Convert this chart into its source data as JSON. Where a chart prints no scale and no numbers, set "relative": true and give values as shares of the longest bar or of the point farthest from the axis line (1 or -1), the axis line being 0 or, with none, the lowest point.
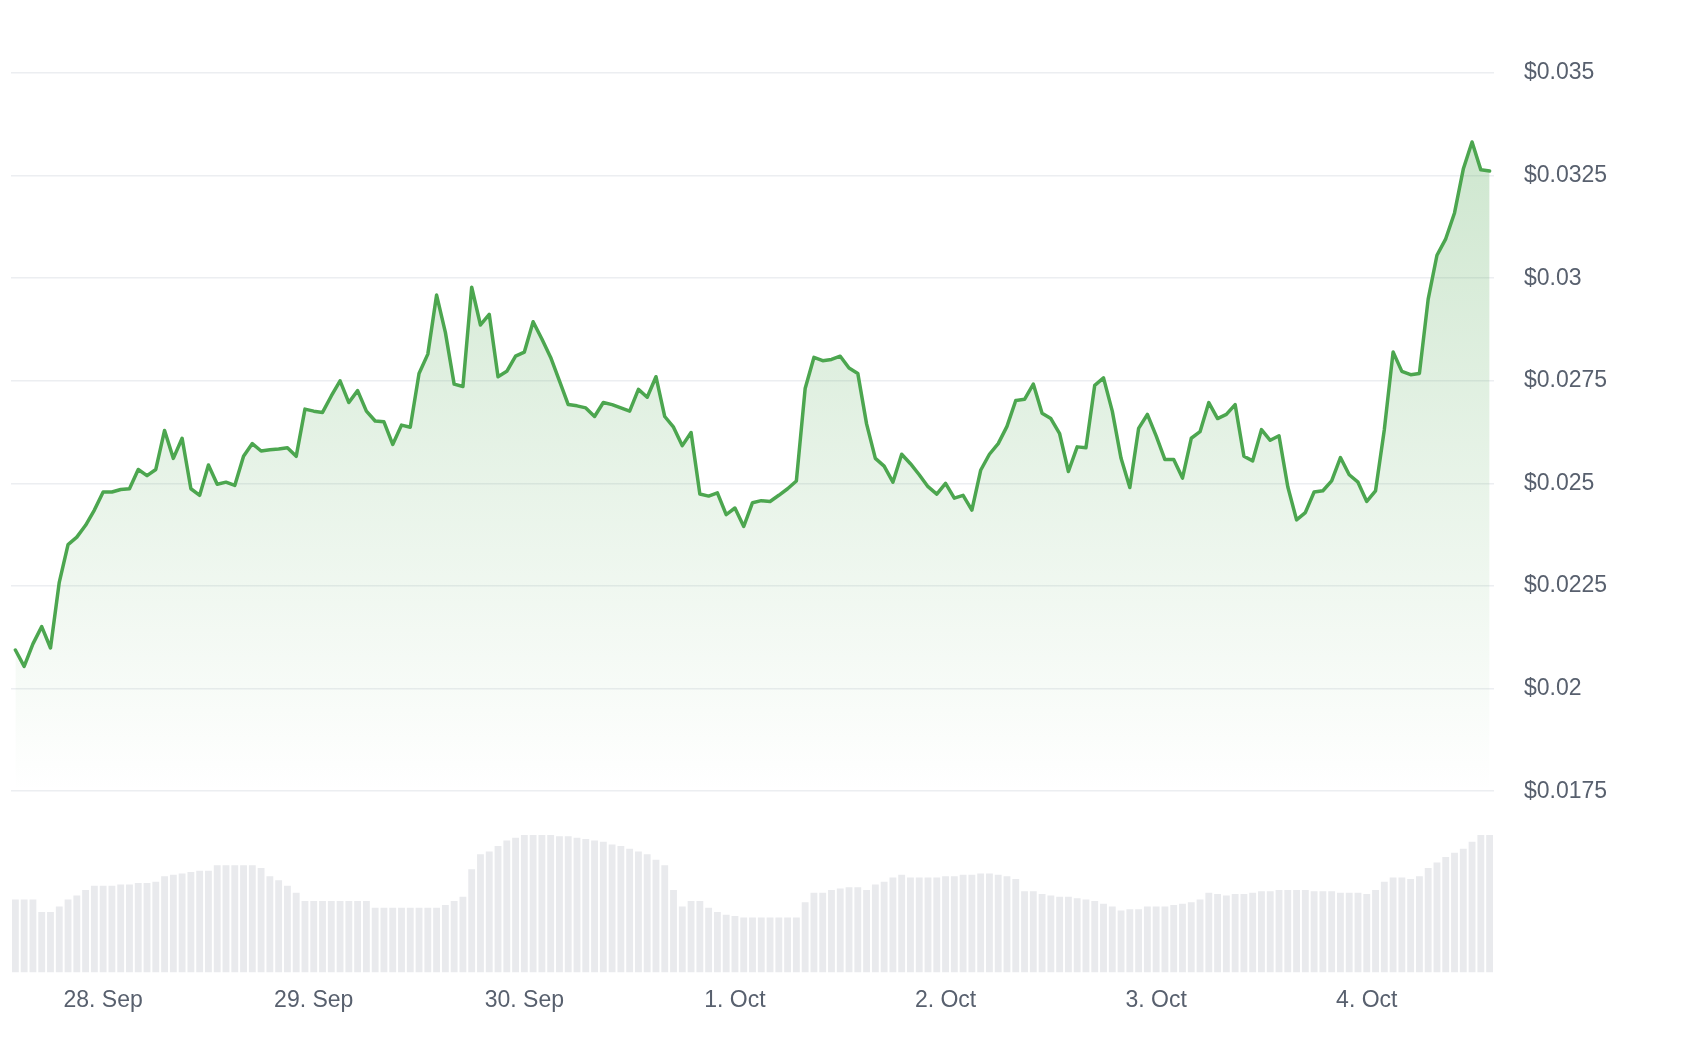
{
  "chart_data": [
    {
      "type": "area",
      "x": [
        "--09-27T14:00",
        "--09-27T15:00",
        "--09-27T16:00",
        "--09-27T17:00",
        "--09-27T18:00",
        "--09-27T19:00",
        "--09-27T20:00",
        "--09-27T21:00",
        "--09-27T22:00",
        "--09-27T23:00",
        "--09-28T00:00",
        "--09-28T01:00",
        "--09-28T02:00",
        "--09-28T03:00",
        "--09-28T04:00",
        "--09-28T05:00",
        "--09-28T06:00",
        "--09-28T07:00",
        "--09-28T08:00",
        "--09-28T09:00",
        "--09-28T10:00",
        "--09-28T11:00",
        "--09-28T12:00",
        "--09-28T13:00",
        "--09-28T14:00",
        "--09-28T15:00",
        "--09-28T16:00",
        "--09-28T17:00",
        "--09-28T18:00",
        "--09-28T19:00",
        "--09-28T20:00",
        "--09-28T21:00",
        "--09-28T22:00",
        "--09-28T23:00",
        "--09-29T00:00",
        "--09-29T01:00",
        "--09-29T02:00",
        "--09-29T03:00",
        "--09-29T04:00",
        "--09-29T05:00",
        "--09-29T06:00",
        "--09-29T07:00",
        "--09-29T08:00",
        "--09-29T09:00",
        "--09-29T10:00",
        "--09-29T11:00",
        "--09-29T12:00",
        "--09-29T13:00",
        "--09-29T14:00",
        "--09-29T15:00",
        "--09-29T16:00",
        "--09-29T17:00",
        "--09-29T18:00",
        "--09-29T19:00",
        "--09-29T20:00",
        "--09-29T21:00",
        "--09-29T22:00",
        "--09-29T23:00",
        "--09-30T00:00",
        "--09-30T01:00",
        "--09-30T02:00",
        "--09-30T03:00",
        "--09-30T04:00",
        "--09-30T05:00",
        "--09-30T06:00",
        "--09-30T07:00",
        "--09-30T08:00",
        "--09-30T09:00",
        "--09-30T10:00",
        "--09-30T11:00",
        "--09-30T12:00",
        "--09-30T13:00",
        "--09-30T14:00",
        "--09-30T15:00",
        "--09-30T16:00",
        "--09-30T17:00",
        "--09-30T18:00",
        "--09-30T19:00",
        "--09-30T20:00",
        "--09-30T21:00",
        "--09-30T22:00",
        "--09-30T23:00",
        "--10-01T00:00",
        "--10-01T01:00",
        "--10-01T02:00",
        "--10-01T03:00",
        "--10-01T04:00",
        "--10-01T05:00",
        "--10-01T06:00",
        "--10-01T07:00",
        "--10-01T08:00",
        "--10-01T09:00",
        "--10-01T10:00",
        "--10-01T11:00",
        "--10-01T12:00",
        "--10-01T13:00",
        "--10-01T14:00",
        "--10-01T15:00",
        "--10-01T16:00",
        "--10-01T17:00",
        "--10-01T18:00",
        "--10-01T19:00",
        "--10-01T20:00",
        "--10-01T21:00",
        "--10-01T22:00",
        "--10-01T23:00",
        "--10-02T00:00",
        "--10-02T01:00",
        "--10-02T02:00",
        "--10-02T03:00",
        "--10-02T04:00",
        "--10-02T05:00",
        "--10-02T06:00",
        "--10-02T07:00",
        "--10-02T08:00",
        "--10-02T09:00",
        "--10-02T10:00",
        "--10-02T11:00",
        "--10-02T12:00",
        "--10-02T13:00",
        "--10-02T14:00",
        "--10-02T15:00",
        "--10-02T16:00",
        "--10-02T17:00",
        "--10-02T18:00",
        "--10-02T19:00",
        "--10-02T20:00",
        "--10-02T21:00",
        "--10-02T22:00",
        "--10-02T23:00",
        "--10-03T00:00",
        "--10-03T01:00",
        "--10-03T02:00",
        "--10-03T03:00",
        "--10-03T04:00",
        "--10-03T05:00",
        "--10-03T06:00",
        "--10-03T07:00",
        "--10-03T08:00",
        "--10-03T09:00",
        "--10-03T10:00",
        "--10-03T11:00",
        "--10-03T12:00",
        "--10-03T13:00",
        "--10-03T14:00",
        "--10-03T15:00",
        "--10-03T16:00",
        "--10-03T17:00",
        "--10-03T18:00",
        "--10-03T19:00",
        "--10-03T20:00",
        "--10-03T21:00",
        "--10-03T22:00",
        "--10-03T23:00",
        "--10-04T00:00",
        "--10-04T01:00",
        "--10-04T02:00",
        "--10-04T03:00",
        "--10-04T04:00",
        "--10-04T05:00",
        "--10-04T06:00",
        "--10-04T07:00",
        "--10-04T08:00",
        "--10-04T09:00",
        "--10-04T10:00",
        "--10-04T11:00",
        "--10-04T12:00",
        "--10-04T13:00",
        "--10-04T14:00"
      ],
      "series": [
        {
          "color": "#4ca64f",
          "values": [
            0.02094,
            0.02054,
            0.02109,
            0.02151,
            0.02099,
            0.02259,
            0.02351,
            0.02369,
            0.02398,
            0.02435,
            0.02479,
            0.02479,
            0.02485,
            0.02487,
            0.02534,
            0.02519,
            0.02534,
            0.02629,
            0.02561,
            0.0261,
            0.02487,
            0.02471,
            0.02545,
            0.02498,
            0.02503,
            0.02495,
            0.02566,
            0.02597,
            0.02579,
            0.02582,
            0.02584,
            0.02587,
            0.02566,
            0.02681,
            0.02676,
            0.02673,
            0.02713,
            0.0275,
            0.02697,
            0.02726,
            0.02676,
            0.02652,
            0.0265,
            0.02595,
            0.02642,
            0.02637,
            0.02768,
            0.02815,
            0.02959,
            0.02868,
            0.02742,
            0.02736,
            0.02978,
            0.02886,
            0.02912,
            0.0276,
            0.02773,
            0.0281,
            0.0282,
            0.02894,
            0.02852,
            0.02807,
            0.0275,
            0.02692,
            0.02689,
            0.02684,
            0.02663,
            0.02697,
            0.02692,
            0.02684,
            0.02676,
            0.02729,
            0.0271,
            0.0276,
            0.02663,
            0.02637,
            0.02592,
            0.02624,
            0.02474,
            0.02469,
            0.02477,
            0.02424,
            0.0244,
            0.02395,
            0.02453,
            0.02458,
            0.02456,
            0.02471,
            0.02487,
            0.02506,
            0.02731,
            0.02807,
            0.02799,
            0.02802,
            0.0281,
            0.02781,
            0.02768,
            0.02645,
            0.02561,
            0.02542,
            0.02503,
            0.02571,
            0.02548,
            0.02521,
            0.02492,
            0.02474,
            0.025,
            0.02464,
            0.02471,
            0.02435,
            0.02532,
            0.02571,
            0.02597,
            0.02639,
            0.02702,
            0.02705,
            0.02742,
            0.02671,
            0.02658,
            0.02621,
            0.02529,
            0.02589,
            0.02587,
            0.02739,
            0.02757,
            0.02676,
            0.02561,
            0.0249,
            0.02634,
            0.02668,
            0.02616,
            0.02558,
            0.02558,
            0.02513,
            0.0261,
            0.02626,
            0.02697,
            0.02658,
            0.02668,
            0.02692,
            0.02566,
            0.02555,
            0.02631,
            0.02605,
            0.02616,
            0.02492,
            0.02411,
            0.02429,
            0.02479,
            0.02482,
            0.02506,
            0.02563,
            0.02521,
            0.02503,
            0.02456,
            0.02482,
            0.02631,
            0.0282,
            0.02773,
            0.02765,
            0.02768,
            0.02949,
            0.03056,
            0.03096,
            0.03159,
            0.03266,
            0.03332,
            0.03264,
            0.03261
          ]
        }
      ],
      "xlim": [
        "--09-27T13:30",
        "--10-04T14:30"
      ],
      "ylim": [
        0.0175,
        0.035
      ],
      "yticks": [
        {
          "value": 0.0175,
          "label": "$0.0175"
        },
        {
          "value": 0.02,
          "label": "$0.02"
        },
        {
          "value": 0.0225,
          "label": "$0.0225"
        },
        {
          "value": 0.025,
          "label": "$0.025"
        },
        {
          "value": 0.0275,
          "label": "$0.0275"
        },
        {
          "value": 0.03,
          "label": "$0.03"
        },
        {
          "value": 0.0325,
          "label": "$0.0325"
        },
        {
          "value": 0.035,
          "label": "$0.035"
        }
      ],
      "grid": "y",
      "tick_labels": "y"
    },
    {
      "type": "bar",
      "relative": true,
      "x": [
        "--09-27T14:00",
        "--09-27T15:00",
        "--09-27T16:00",
        "--09-27T17:00",
        "--09-27T18:00",
        "--09-27T19:00",
        "--09-27T20:00",
        "--09-27T21:00",
        "--09-27T22:00",
        "--09-27T23:00",
        "--09-28T00:00",
        "--09-28T01:00",
        "--09-28T02:00",
        "--09-28T03:00",
        "--09-28T04:00",
        "--09-28T05:00",
        "--09-28T06:00",
        "--09-28T07:00",
        "--09-28T08:00",
        "--09-28T09:00",
        "--09-28T10:00",
        "--09-28T11:00",
        "--09-28T12:00",
        "--09-28T13:00",
        "--09-28T14:00",
        "--09-28T15:00",
        "--09-28T16:00",
        "--09-28T17:00",
        "--09-28T18:00",
        "--09-28T19:00",
        "--09-28T20:00",
        "--09-28T21:00",
        "--09-28T22:00",
        "--09-28T23:00",
        "--09-29T00:00",
        "--09-29T01:00",
        "--09-29T02:00",
        "--09-29T03:00",
        "--09-29T04:00",
        "--09-29T05:00",
        "--09-29T06:00",
        "--09-29T07:00",
        "--09-29T08:00",
        "--09-29T09:00",
        "--09-29T10:00",
        "--09-29T11:00",
        "--09-29T12:00",
        "--09-29T13:00",
        "--09-29T14:00",
        "--09-29T15:00",
        "--09-29T16:00",
        "--09-29T17:00",
        "--09-29T18:00",
        "--09-29T19:00",
        "--09-29T20:00",
        "--09-29T21:00",
        "--09-29T22:00",
        "--09-29T23:00",
        "--09-30T00:00",
        "--09-30T01:00",
        "--09-30T02:00",
        "--09-30T03:00",
        "--09-30T04:00",
        "--09-30T05:00",
        "--09-30T06:00",
        "--09-30T07:00",
        "--09-30T08:00",
        "--09-30T09:00",
        "--09-30T10:00",
        "--09-30T11:00",
        "--09-30T12:00",
        "--09-30T13:00",
        "--09-30T14:00",
        "--09-30T15:00",
        "--09-30T16:00",
        "--09-30T17:00",
        "--09-30T18:00",
        "--09-30T19:00",
        "--09-30T20:00",
        "--09-30T21:00",
        "--09-30T22:00",
        "--09-30T23:00",
        "--10-01T00:00",
        "--10-01T01:00",
        "--10-01T02:00",
        "--10-01T03:00",
        "--10-01T04:00",
        "--10-01T05:00",
        "--10-01T06:00",
        "--10-01T07:00",
        "--10-01T08:00",
        "--10-01T09:00",
        "--10-01T10:00",
        "--10-01T11:00",
        "--10-01T12:00",
        "--10-01T13:00",
        "--10-01T14:00",
        "--10-01T15:00",
        "--10-01T16:00",
        "--10-01T17:00",
        "--10-01T18:00",
        "--10-01T19:00",
        "--10-01T20:00",
        "--10-01T21:00",
        "--10-01T22:00",
        "--10-01T23:00",
        "--10-02T00:00",
        "--10-02T01:00",
        "--10-02T02:00",
        "--10-02T03:00",
        "--10-02T04:00",
        "--10-02T05:00",
        "--10-02T06:00",
        "--10-02T07:00",
        "--10-02T08:00",
        "--10-02T09:00",
        "--10-02T10:00",
        "--10-02T11:00",
        "--10-02T12:00",
        "--10-02T13:00",
        "--10-02T14:00",
        "--10-02T15:00",
        "--10-02T16:00",
        "--10-02T17:00",
        "--10-02T18:00",
        "--10-02T19:00",
        "--10-02T20:00",
        "--10-02T21:00",
        "--10-02T22:00",
        "--10-02T23:00",
        "--10-03T00:00",
        "--10-03T01:00",
        "--10-03T02:00",
        "--10-03T03:00",
        "--10-03T04:00",
        "--10-03T05:00",
        "--10-03T06:00",
        "--10-03T07:00",
        "--10-03T08:00",
        "--10-03T09:00",
        "--10-03T10:00",
        "--10-03T11:00",
        "--10-03T12:00",
        "--10-03T13:00",
        "--10-03T14:00",
        "--10-03T15:00",
        "--10-03T16:00",
        "--10-03T17:00",
        "--10-03T18:00",
        "--10-03T19:00",
        "--10-03T20:00",
        "--10-03T21:00",
        "--10-03T22:00",
        "--10-03T23:00",
        "--10-04T00:00",
        "--10-04T01:00",
        "--10-04T02:00",
        "--10-04T03:00",
        "--10-04T04:00",
        "--10-04T05:00",
        "--10-04T06:00",
        "--10-04T07:00",
        "--10-04T08:00",
        "--10-04T09:00",
        "--10-04T10:00",
        "--10-04T11:00",
        "--10-04T12:00",
        "--10-04T13:00",
        "--10-04T14:00"
      ],
      "series": [
        {
          "color": "#e9eaed",
          "values": [
            0.53,
            0.53,
            0.53,
            0.44,
            0.44,
            0.48,
            0.53,
            0.56,
            0.6,
            0.63,
            0.63,
            0.63,
            0.64,
            0.64,
            0.65,
            0.65,
            0.66,
            0.7,
            0.71,
            0.72,
            0.73,
            0.74,
            0.74,
            0.78,
            0.78,
            0.78,
            0.78,
            0.78,
            0.76,
            0.7,
            0.67,
            0.63,
            0.58,
            0.52,
            0.52,
            0.52,
            0.52,
            0.52,
            0.52,
            0.52,
            0.52,
            0.47,
            0.47,
            0.47,
            0.47,
            0.47,
            0.47,
            0.47,
            0.47,
            0.49,
            0.52,
            0.55,
            0.75,
            0.86,
            0.88,
            0.92,
            0.96,
            0.98,
            1.0,
            1.0,
            1.0,
            1.0,
            0.99,
            0.99,
            0.98,
            0.97,
            0.96,
            0.95,
            0.93,
            0.92,
            0.9,
            0.88,
            0.86,
            0.82,
            0.78,
            0.6,
            0.48,
            0.52,
            0.52,
            0.47,
            0.44,
            0.42,
            0.41,
            0.4,
            0.4,
            0.4,
            0.4,
            0.4,
            0.4,
            0.4,
            0.51,
            0.58,
            0.58,
            0.6,
            0.61,
            0.62,
            0.62,
            0.6,
            0.64,
            0.66,
            0.69,
            0.71,
            0.69,
            0.69,
            0.69,
            0.69,
            0.7,
            0.7,
            0.71,
            0.71,
            0.72,
            0.72,
            0.71,
            0.7,
            0.68,
            0.59,
            0.59,
            0.57,
            0.56,
            0.55,
            0.55,
            0.54,
            0.53,
            0.52,
            0.5,
            0.48,
            0.45,
            0.46,
            0.46,
            0.48,
            0.48,
            0.48,
            0.49,
            0.5,
            0.51,
            0.53,
            0.58,
            0.57,
            0.56,
            0.57,
            0.57,
            0.58,
            0.59,
            0.59,
            0.6,
            0.6,
            0.6,
            0.6,
            0.59,
            0.59,
            0.59,
            0.58,
            0.58,
            0.58,
            0.57,
            0.6,
            0.66,
            0.69,
            0.69,
            0.68,
            0.7,
            0.76,
            0.8,
            0.84,
            0.87,
            0.9,
            0.95,
            1.0,
            1.0
          ]
        }
      ],
      "xlim": [
        "--09-27T13:30",
        "--10-04T14:30"
      ],
      "xticks": [
        {
          "value": "--09-28",
          "label": "28. Sep"
        },
        {
          "value": "--09-29",
          "label": "29. Sep"
        },
        {
          "value": "--09-30",
          "label": "30. Sep"
        },
        {
          "value": "--10-01",
          "label": "1. Oct"
        },
        {
          "value": "--10-02",
          "label": "2. Oct"
        },
        {
          "value": "--10-03",
          "label": "3. Oct"
        },
        {
          "value": "--10-04",
          "label": "4. Oct"
        }
      ],
      "tick_labels": "x"
    }
  ]
}
